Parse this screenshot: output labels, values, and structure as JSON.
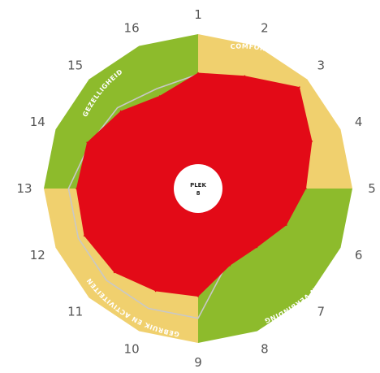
{
  "chart_data": {
    "type": "radar",
    "axes": [
      "1",
      "2",
      "3",
      "4",
      "5",
      "6",
      "7",
      "8",
      "9",
      "10",
      "11",
      "12",
      "13",
      "14",
      "15",
      "16"
    ],
    "max_value": 10,
    "center_label": {
      "line1": "PLEK",
      "line2": "8"
    },
    "segments": [
      {
        "name": "COMFORT",
        "start_axis": 1,
        "end_axis": 5,
        "color": "#f0d06e"
      },
      {
        "name": "TOEGANKELIJKHEID EN VERBINDING",
        "start_axis": 5,
        "end_axis": 9,
        "color": "#8dbb2c"
      },
      {
        "name": "GEBRUIK EN ACTIVITEITEN",
        "start_axis": 9,
        "end_axis": 13,
        "color": "#f0d06e"
      },
      {
        "name": "GEZELLIGHEID",
        "start_axis": 13,
        "end_axis": 17,
        "color": "#8dbb2c"
      }
    ],
    "segment_labels_visible": [
      "COMFORT",
      "TOEGANKELIJKHEID EN VERBINDING",
      "GEBRUIK EN ACTIVITEITEN",
      "GEZELLIGHEID"
    ],
    "series": [
      {
        "values": [
          7.5,
          7.9,
          9.3,
          8.0,
          7.0,
          6.2,
          5.4,
          5.4,
          7.0,
          7.2,
          7.7,
          8.0,
          7.9,
          7.8,
          7.1,
          6.5
        ],
        "color": "#e30a17"
      }
    ],
    "reference_line": {
      "values": [
        7.4,
        7.0,
        8.8,
        7.2,
        6.4,
        5.7,
        5.0,
        5.1,
        8.4,
        8.4,
        8.4,
        8.4,
        8.4,
        7.6,
        7.4,
        7.0
      ],
      "color": "#c8c8c8"
    }
  }
}
